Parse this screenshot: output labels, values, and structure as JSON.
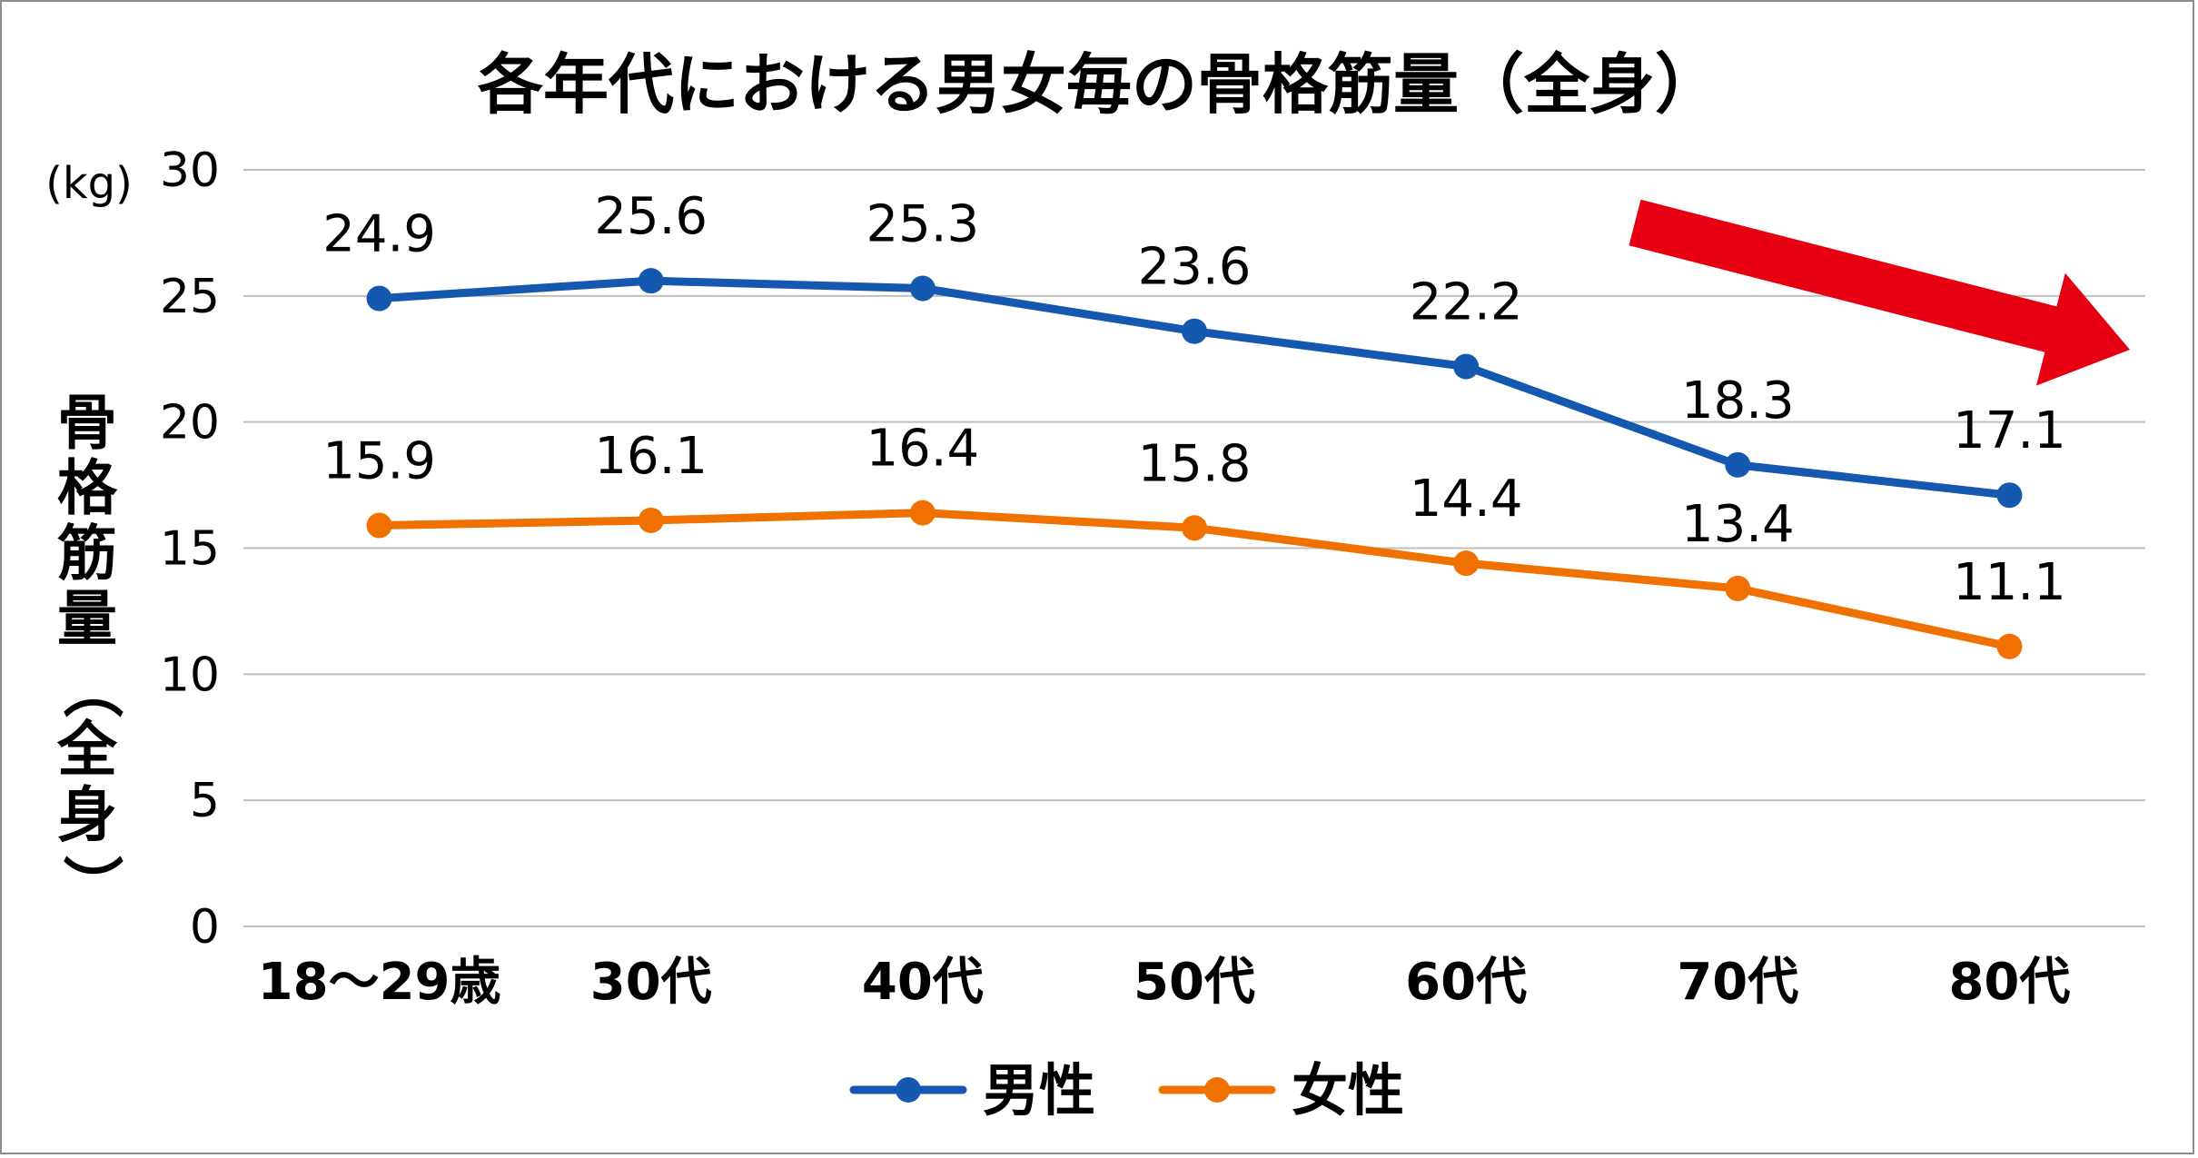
{
  "chart_data": {
    "type": "line",
    "title": "各年代における男女毎の骨格筋量（全身）",
    "ylabel": "骨格筋量（全身）",
    "yunit": "(kg)",
    "ylim": [
      0,
      30
    ],
    "yticks": [
      0,
      5,
      10,
      15,
      20,
      25,
      30
    ],
    "grid": true,
    "legend_position": "bottom",
    "categories": [
      "18～29歳",
      "30代",
      "40代",
      "50代",
      "60代",
      "70代",
      "80代"
    ],
    "series": [
      {
        "name": "男性",
        "color": "#1558b0",
        "values": [
          24.9,
          25.6,
          25.3,
          23.6,
          22.2,
          18.3,
          17.1
        ]
      },
      {
        "name": "女性",
        "color": "#f07000",
        "values": [
          15.9,
          16.1,
          16.4,
          15.8,
          14.4,
          13.4,
          11.1
        ]
      }
    ],
    "annotation": {
      "shape": "arrow",
      "direction": "down-right",
      "color": "#e60012"
    }
  }
}
